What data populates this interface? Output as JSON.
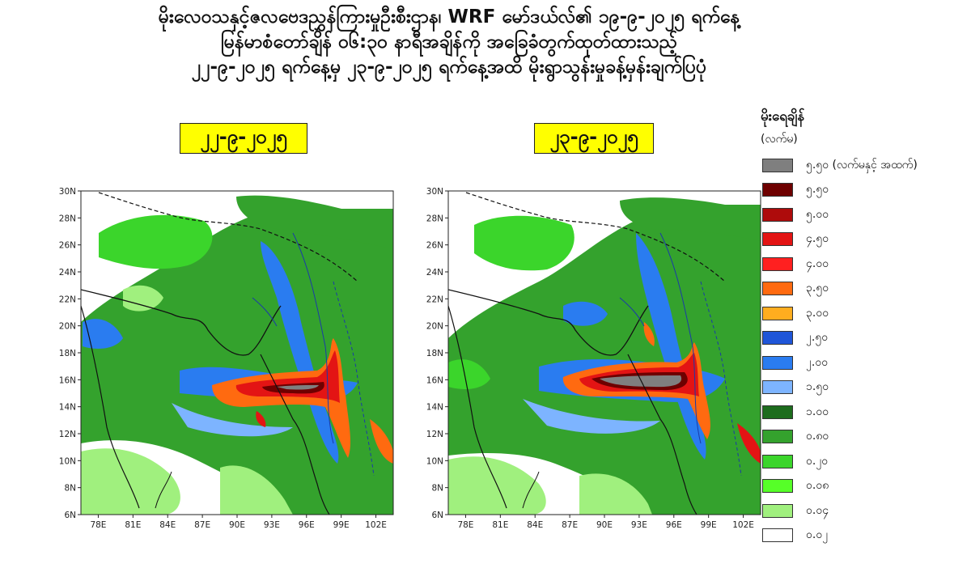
{
  "header": {
    "title_line1": "မိုးလေဝသနှင့်ဇလဗေဒညွှန်ကြားမှုဦးစီးဌာန၊ WRF မော်ဒယ်လ်၏ ၁၉-၉-၂၀၂၅ ရက်နေ့",
    "title_line2": "မြန်မာစံတော်ချိန် ၀၆:၃၀ နာရီအချိန်ကို အခြေခံတွက်ထုတ်ထားသည့်",
    "title_line3": "၂၂-၉-၂၀၂၅ ရက်နေ့မှ ၂၃-၉-၂၀၂၅ ရက်နေ့အထိ မိုးရွာသွန်းမှုခန့်မှန်းချက်ပြပုံ"
  },
  "maps": {
    "left": {
      "date": "၂၂-၉-၂၀၂၅"
    },
    "right": {
      "date": "၂၃-၉-၂၀၂၅"
    },
    "lat_labels": [
      "30N",
      "28N",
      "26N",
      "24N",
      "22N",
      "20N",
      "18N",
      "16N",
      "14N",
      "12N",
      "10N",
      "8N",
      "6N"
    ],
    "lon_labels": [
      "78E",
      "81E",
      "84E",
      "87E",
      "90E",
      "93E",
      "96E",
      "99E",
      "102E"
    ],
    "lat_range": [
      6,
      30
    ],
    "lon_range": [
      76.5,
      103.5
    ]
  },
  "legend": {
    "title": "မိုးရေချိန်",
    "unit": "(လက်မ)",
    "items": [
      {
        "label": "၅.၅၀ (လက်မနှင့် အထက်)",
        "color": "#7f7f7f"
      },
      {
        "label": "၅.၅၀",
        "color": "#6e0000"
      },
      {
        "label": "၅.၀၀",
        "color": "#ae0b0b"
      },
      {
        "label": "၄.၅၀",
        "color": "#e31414"
      },
      {
        "label": "၄.၀၀",
        "color": "#ff2020"
      },
      {
        "label": "၃.၅၀",
        "color": "#ff6a10"
      },
      {
        "label": "၃.၀၀",
        "color": "#ffad1f"
      },
      {
        "label": "၂.၅၀",
        "color": "#1f55d8"
      },
      {
        "label": "၂.၀၀",
        "color": "#2a7cf0"
      },
      {
        "label": "၁.၅၀",
        "color": "#7db4ff"
      },
      {
        "label": "၁.၀၀",
        "color": "#1d6c1d"
      },
      {
        "label": "၀.၈၀",
        "color": "#34a22d"
      },
      {
        "label": "၀.၂၀",
        "color": "#3bd52b"
      },
      {
        "label": "၀.၀၈",
        "color": "#56ff28"
      },
      {
        "label": "၀.၀၄",
        "color": "#a0f07e"
      },
      {
        "label": "၀.၀၂",
        "color": "#ffffff"
      }
    ]
  }
}
